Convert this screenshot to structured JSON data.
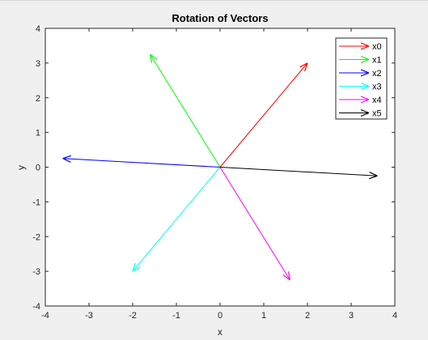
{
  "chart_data": {
    "type": "line",
    "title": "Rotation of Vectors",
    "xlabel": "x",
    "ylabel": "y",
    "xlim": [
      -4,
      4
    ],
    "ylim": [
      -4,
      4
    ],
    "xticks": [
      -4,
      -3,
      -2,
      -1,
      0,
      1,
      2,
      3,
      4
    ],
    "yticks": [
      -4,
      -3,
      -2,
      -1,
      0,
      1,
      2,
      3,
      4
    ],
    "grid": false,
    "legend_position": "top-right",
    "series": [
      {
        "name": "x0",
        "color": "#ff0000",
        "from": [
          0,
          0
        ],
        "to": [
          2.0,
          3.0
        ]
      },
      {
        "name": "x1",
        "color": "#00ff00",
        "from": [
          0,
          0
        ],
        "to": [
          -1.6,
          3.25
        ]
      },
      {
        "name": "x2",
        "color": "#0000ff",
        "from": [
          0,
          0
        ],
        "to": [
          -3.6,
          0.25
        ]
      },
      {
        "name": "x3",
        "color": "#00ffff",
        "from": [
          0,
          0
        ],
        "to": [
          -2.0,
          -3.0
        ]
      },
      {
        "name": "x4",
        "color": "#ff00ff",
        "from": [
          0,
          0
        ],
        "to": [
          1.6,
          -3.25
        ]
      },
      {
        "name": "x5",
        "color": "#000000",
        "from": [
          0,
          0
        ],
        "to": [
          3.6,
          -0.25
        ]
      }
    ]
  }
}
